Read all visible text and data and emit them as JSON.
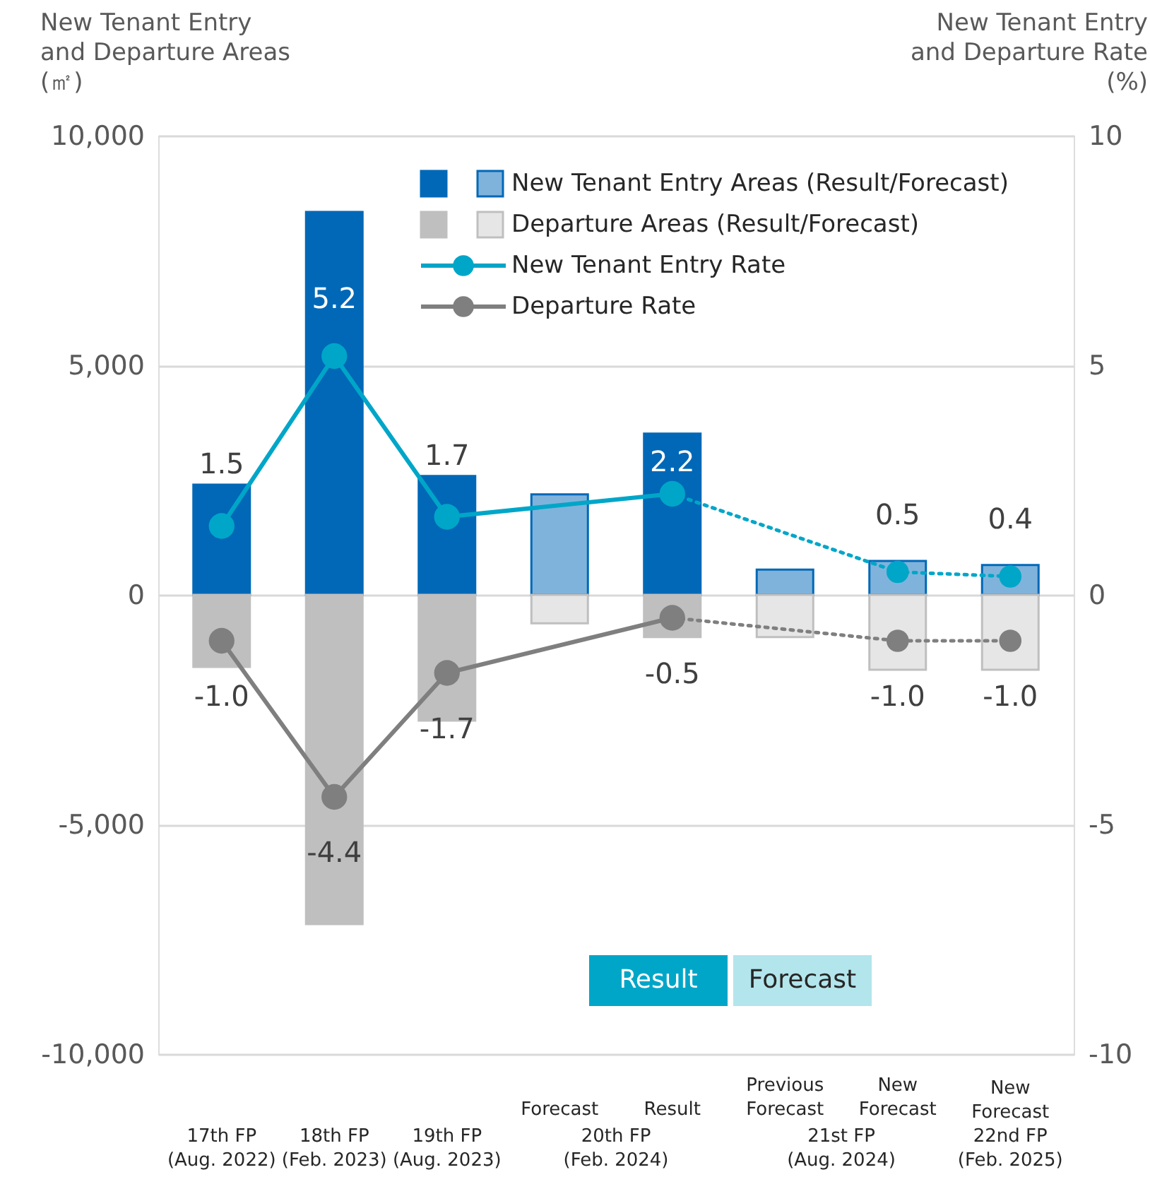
{
  "chart_data": {
    "type": "bar",
    "ylabel": "New Tenant Entry\nand Departure Areas\n(㎡)",
    "y2label": "New Tenant Entry\nand Departure Rate\n(%)",
    "categories": [
      "17th FP\n(Aug. 2022)",
      "18th FP\n(Feb. 2023)",
      "19th FP\n(Aug. 2023)",
      "Forecast",
      "Result",
      "Previous\nForecast",
      "New\nForecast",
      "New\nForecast\n22nd FP\n(Feb. 2025)"
    ],
    "series": [
      {
        "name": "New Tenant Entry Areas (Result/Forecast)",
        "color": "#0068b7",
        "colors": [
          "#0068b7",
          "#0068b7",
          "#0068b7",
          "#80b3db",
          "#0068b7",
          "#80b3db",
          "#80b3db",
          "#80b3db"
        ],
        "values": [
          2400,
          8340,
          2590,
          2190,
          3510,
          550,
          740,
          650
        ]
      },
      {
        "name": "Departure Areas (Result/Forecast)",
        "color": "#bfbfbf",
        "colors": [
          "#bfbfbf",
          "#bfbfbf",
          "#bfbfbf",
          "#e6e6e6",
          "#bfbfbf",
          "#e6e6e6",
          "#e6e6e6",
          "#e6e6e6"
        ],
        "values": [
          -1570,
          -7170,
          -2740,
          -620,
          -920,
          -920,
          -1630,
          -1630
        ]
      },
      {
        "name": "New Tenant Entry Rate",
        "type": "line",
        "axis": "y2",
        "color": "#00a6c8",
        "line_style": "solid",
        "values": [
          1.5,
          5.2,
          1.7,
          null,
          2.2,
          null,
          null,
          null
        ],
        "value_labels": [
          "1.5",
          "5.2",
          "1.7",
          null,
          "2.2",
          null,
          null,
          null
        ]
      },
      {
        "type": "line",
        "axis": "y2",
        "color": "#00a6c8",
        "line_style": "dotted",
        "values": [
          null,
          null,
          null,
          null,
          2.2,
          null,
          0.5,
          0.4
        ],
        "value_labels": [
          null,
          null,
          null,
          null,
          null,
          null,
          "0.5",
          "0.4"
        ]
      },
      {
        "name": "Departure Rate",
        "type": "line",
        "axis": "y2",
        "color": "#7f7f7f",
        "line_style": "solid",
        "values": [
          -1.0,
          -4.4,
          -1.7,
          null,
          -0.5,
          null,
          null,
          null
        ],
        "value_labels": [
          "-1.0",
          "-4.4",
          "-1.7",
          null,
          "-0.5",
          null,
          null,
          null
        ]
      },
      {
        "type": "line",
        "axis": "y2",
        "color": "#7f7f7f",
        "line_style": "dotted",
        "values": [
          null,
          null,
          null,
          null,
          -0.5,
          null,
          -1.0,
          -1.0
        ],
        "value_labels": [
          null,
          null,
          null,
          null,
          null,
          null,
          "-1.0",
          "-1.0"
        ]
      }
    ],
    "ylim": [
      -10000,
      10000
    ],
    "yticks": [
      {
        "value": -10000,
        "label": "-10,000"
      },
      {
        "value": -5000,
        "label": "-5,000"
      },
      0,
      {
        "value": 5000,
        "label": "5,000"
      },
      {
        "value": 10000,
        "label": "10,000"
      }
    ],
    "y2lim": [
      -10,
      10
    ],
    "y2ticks": [
      -10,
      -5,
      0,
      5,
      10
    ],
    "stacked": true,
    "annotations": [
      "20th FP\n(Feb. 2024)",
      "21st FP\n(Aug. 2024)",
      "Result",
      "Forecast"
    ],
    "grid": "y",
    "legend": "top right",
    "marker": "circle"
  }
}
